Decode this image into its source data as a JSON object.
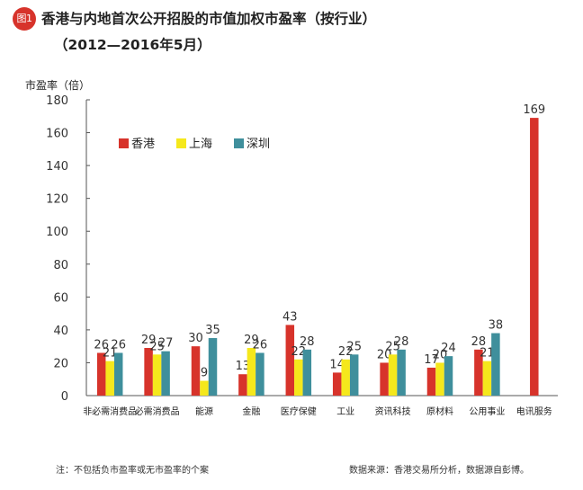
{
  "badge": "图1",
  "title": "香港与内地首次公开招股的市值加权市盈率（按行业）",
  "subtitle": "（2012—2016年5月）",
  "footnote": "注：不包括负市盈率或无市盈率的个案",
  "source": "数据来源：香港交易所分析，数据源自彭博。",
  "colors": {
    "hk": "#d7332b",
    "sh": "#f5e81c",
    "sz": "#3f8f9c",
    "axis": "#555555"
  },
  "chart_data": {
    "type": "bar",
    "title": "香港与内地首次公开招股的市值加权市盈率（按行业）",
    "ylabel": "市盈率（倍）",
    "xlabel": "",
    "ylim": [
      0,
      180
    ],
    "yticks": [
      0,
      20,
      40,
      60,
      80,
      100,
      120,
      140,
      160,
      180
    ],
    "legend_position": "top-left",
    "categories": [
      "非必需消费品",
      "必需消费品",
      "能源",
      "金融",
      "医疗保健",
      "工业",
      "资讯科技",
      "原材料",
      "公用事业",
      "电讯服务"
    ],
    "series": [
      {
        "name": "香港",
        "key": "hk",
        "values": [
          26,
          29,
          30,
          13,
          43,
          14,
          20,
          17,
          28,
          169
        ]
      },
      {
        "name": "上海",
        "key": "sh",
        "values": [
          21,
          25,
          9,
          29,
          22,
          22,
          25,
          20,
          21,
          null
        ]
      },
      {
        "name": "深圳",
        "key": "sz",
        "values": [
          26,
          27,
          35,
          26,
          28,
          25,
          28,
          24,
          38,
          null
        ]
      }
    ]
  }
}
